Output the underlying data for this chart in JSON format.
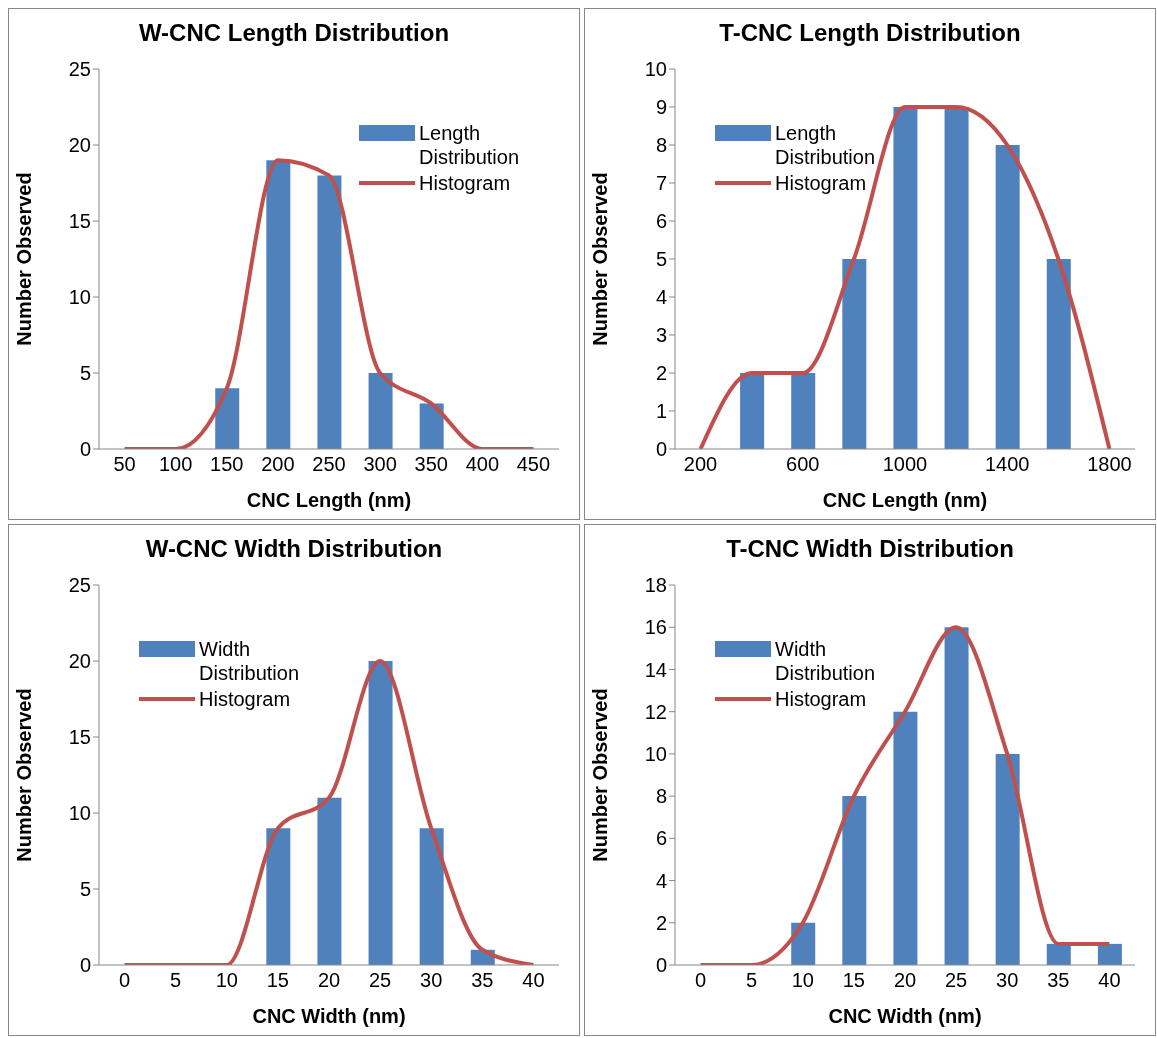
{
  "chart_data": [
    {
      "type": "bar",
      "title": "W-CNC Length Distribution",
      "xlabel": "CNC Length (nm)",
      "ylabel": "Number Observed",
      "categories": [
        "50",
        "100",
        "150",
        "200",
        "250",
        "300",
        "350",
        "400",
        "450"
      ],
      "ylim": [
        0,
        25
      ],
      "yticks": [
        0,
        5,
        10,
        15,
        20,
        25
      ],
      "legend": "top right",
      "series": [
        {
          "name": "Length Distribution",
          "color": "#4f81bd",
          "values": [
            0,
            0,
            4,
            19,
            18,
            5,
            3,
            0,
            0
          ]
        },
        {
          "name": "Histogram",
          "type": "line",
          "color": "#c0504d",
          "values": [
            0,
            0,
            4,
            19,
            18,
            5,
            3,
            0,
            0
          ]
        }
      ]
    },
    {
      "type": "bar",
      "title": "T-CNC Length Distribution",
      "xlabel": "CNC Length (nm)",
      "ylabel": "Number Observed",
      "categories": [
        "200",
        null,
        "600",
        null,
        "1000",
        null,
        "1400",
        null,
        "1800"
      ],
      "ylim": [
        0,
        10
      ],
      "yticks": [
        0,
        1,
        2,
        3,
        4,
        5,
        6,
        7,
        8,
        9,
        10
      ],
      "legend": "top left",
      "series": [
        {
          "name": "Length Distribution",
          "color": "#4f81bd",
          "values": [
            0,
            2,
            2,
            5,
            9,
            9,
            8,
            5,
            0
          ]
        },
        {
          "name": "Histogram",
          "type": "line",
          "color": "#c0504d",
          "values": [
            0,
            2,
            2,
            5,
            9,
            9,
            8,
            5,
            0
          ]
        }
      ]
    },
    {
      "type": "bar",
      "title": "W-CNC Width Distribution",
      "xlabel": "CNC Width (nm)",
      "ylabel": "Number Observed",
      "categories": [
        "0",
        "5",
        "10",
        "15",
        "20",
        "25",
        "30",
        "35",
        "40"
      ],
      "ylim": [
        0,
        25
      ],
      "yticks": [
        0,
        5,
        10,
        15,
        20,
        25
      ],
      "legend": "top left",
      "series": [
        {
          "name": "Width Distribution",
          "color": "#4f81bd",
          "values": [
            0,
            0,
            0,
            9,
            11,
            20,
            9,
            1,
            0
          ]
        },
        {
          "name": "Histogram",
          "type": "line",
          "color": "#c0504d",
          "values": [
            0,
            0,
            0,
            9,
            11,
            20,
            9,
            1,
            0
          ]
        }
      ]
    },
    {
      "type": "bar",
      "title": "T-CNC Width Distribution",
      "xlabel": "CNC Width (nm)",
      "ylabel": "Number Observed",
      "categories": [
        "0",
        "5",
        "10",
        "15",
        "20",
        "25",
        "30",
        "35",
        "40"
      ],
      "ylim": [
        0,
        18
      ],
      "yticks": [
        0,
        2,
        4,
        6,
        8,
        10,
        12,
        14,
        16,
        18
      ],
      "legend": "top left",
      "series": [
        {
          "name": "Width Distribution",
          "color": "#4f81bd",
          "values": [
            0,
            0,
            2,
            8,
            12,
            16,
            10,
            1,
            1
          ]
        },
        {
          "name": "Histogram",
          "type": "line",
          "color": "#c0504d",
          "values": [
            0,
            0,
            2,
            8,
            12,
            16,
            10,
            1,
            1
          ]
        }
      ]
    }
  ]
}
